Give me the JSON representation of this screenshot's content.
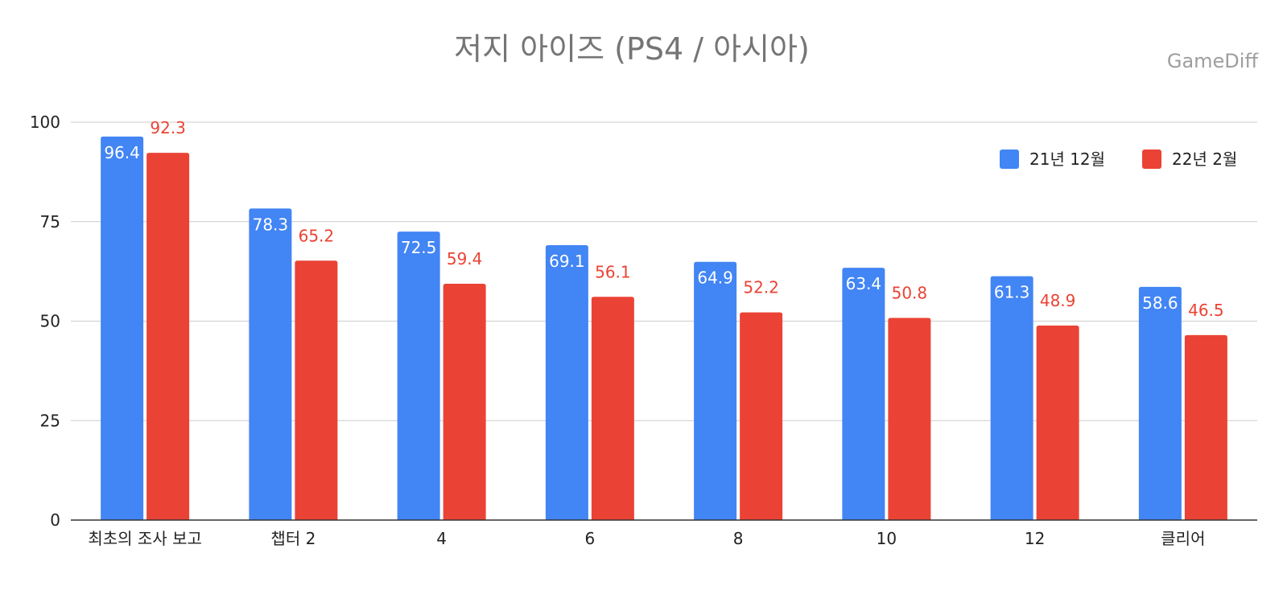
{
  "chart_data": {
    "type": "bar",
    "title": "저지 아이즈 (PS4 / 아시아)",
    "watermark": "GameDiff",
    "categories": [
      "최초의 조사 보고",
      "챕터 2",
      "4",
      "6",
      "8",
      "10",
      "12",
      "클리어"
    ],
    "series": [
      {
        "name": "21년 12월",
        "color": "#4285f4",
        "values": [
          96.4,
          78.3,
          72.5,
          69.1,
          64.9,
          63.4,
          61.3,
          58.6
        ],
        "labels": [
          "96.4",
          "78.3",
          "72.5",
          "69.1",
          "64.9",
          "63.4",
          "61.3",
          "58.6"
        ]
      },
      {
        "name": "22년 2월",
        "color": "#ea4335",
        "values": [
          92.3,
          65.2,
          59.4,
          56.1,
          52.2,
          50.8,
          48.9,
          46.5
        ],
        "labels": [
          "92.3",
          "65.2",
          "59.4",
          "56.1",
          "52.2",
          "50.8",
          "48.9",
          "46.5"
        ]
      }
    ],
    "xlabel": "",
    "ylabel": "",
    "ylim": [
      0,
      100
    ],
    "yticks": [
      0,
      25,
      50,
      75,
      100
    ],
    "ytick_labels": [
      "0",
      "25",
      "50",
      "75",
      "100"
    ],
    "grid": true,
    "legend_position": "top-right"
  }
}
